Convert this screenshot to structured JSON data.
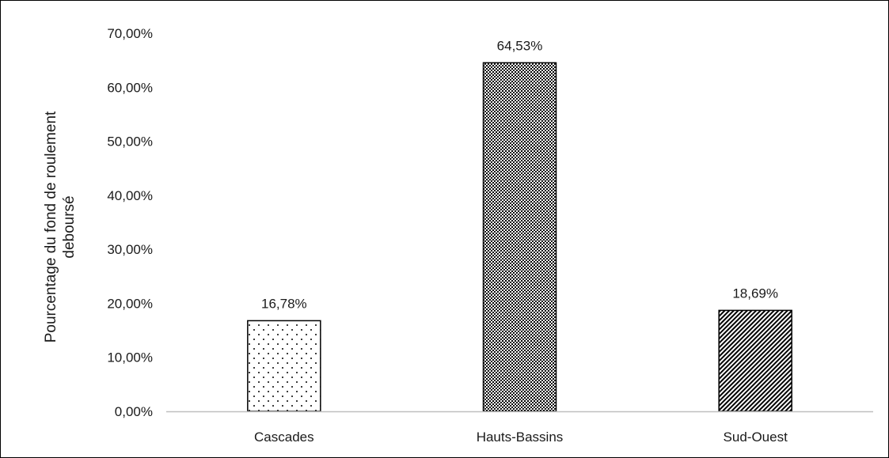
{
  "chart_data": {
    "type": "bar",
    "categories": [
      "Cascades",
      "Hauts-Bassins",
      "Sud-Ouest"
    ],
    "values": [
      16.78,
      64.53,
      18.69
    ],
    "data_labels": [
      "16,78%",
      "64,53%",
      "18,69%"
    ],
    "patterns": [
      "dots",
      "dense-crosshatch",
      "diagonal-stripes"
    ],
    "ylabel_lines": [
      "Pourcentage du fond de roulement",
      "deboursé"
    ],
    "ylim": [
      0,
      70
    ],
    "yticks": [
      0,
      10,
      20,
      30,
      40,
      50,
      60,
      70
    ],
    "ytick_labels": [
      "0,00%",
      "10,00%",
      "20,00%",
      "30,00%",
      "40,00%",
      "50,00%",
      "60,00%",
      "70,00%"
    ],
    "grid": false,
    "bar_fill": "#ffffff",
    "bar_stroke": "#000000",
    "axis_color": "#bfbfbf"
  }
}
